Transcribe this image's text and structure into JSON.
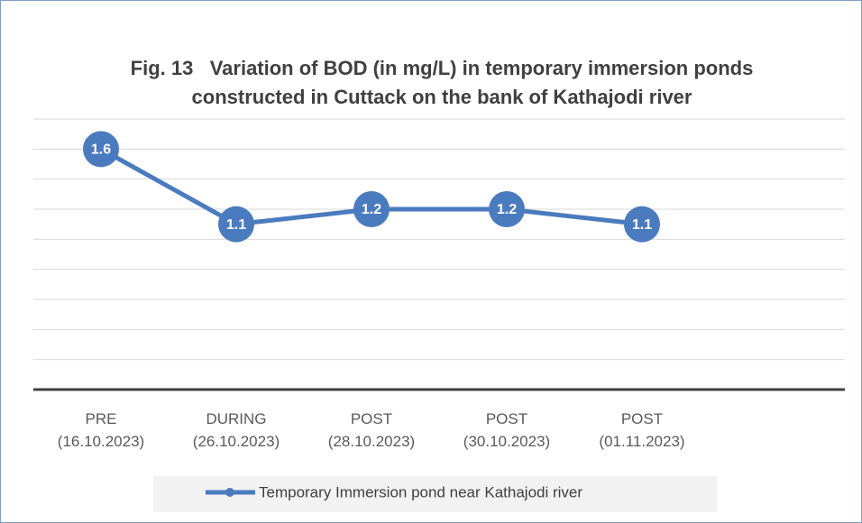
{
  "chart_data": {
    "type": "line",
    "title": "Fig. 13   Variation of BOD (in mg/L) in temporary immersion ponds constructed in Cuttack on the bank of Kathajodi river",
    "categories": [
      [
        "PRE",
        "(16.10.2023)"
      ],
      [
        "DURING",
        "(26.10.2023)"
      ],
      [
        "POST",
        "(28.10.2023)"
      ],
      [
        "POST",
        "(30.10.2023)"
      ],
      [
        "POST",
        "(01.11.2023)"
      ],
      null
    ],
    "series": [
      {
        "name": "Temporary Immersion pond near Kathajodi river",
        "color": "#4a7bbf",
        "values": [
          1.6,
          1.1,
          1.2,
          1.2,
          1.1,
          null
        ]
      }
    ],
    "ylim": [
      0,
      1.8
    ],
    "yticks": [
      0,
      0.2,
      0.4,
      0.6,
      0.8,
      1,
      1.2,
      1.4,
      1.6,
      1.8
    ],
    "grid": true,
    "legend": "bottom"
  }
}
